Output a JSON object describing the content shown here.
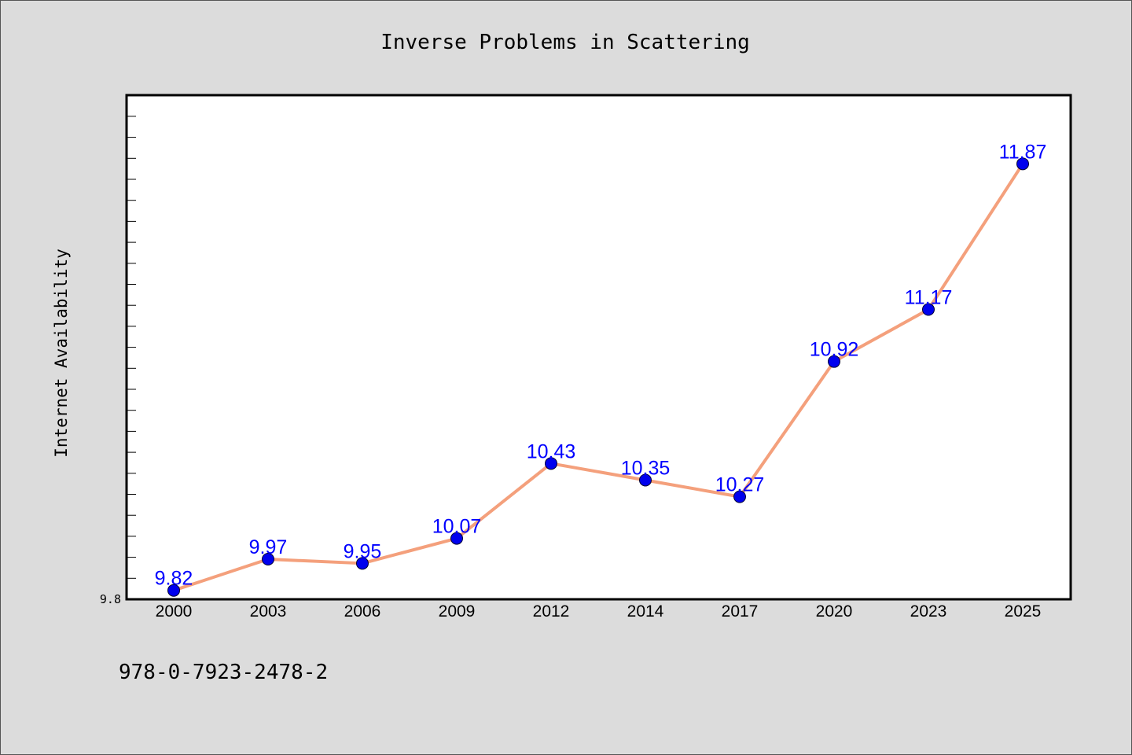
{
  "chart_data": {
    "type": "line",
    "title": "Inverse Problems in Scattering",
    "xlabel": "",
    "ylabel": "Internet Availability",
    "categories": [
      "2000",
      "2003",
      "2006",
      "2009",
      "2012",
      "2014",
      "2017",
      "2020",
      "2023",
      "2025"
    ],
    "series": [
      {
        "values": [
          9.82,
          9.97,
          9.95,
          10.07,
          10.43,
          10.35,
          10.27,
          10.92,
          11.17,
          11.87
        ],
        "labels": [
          "9.82",
          "9.97",
          "9.95",
          "10.07",
          "10.43",
          "10.35",
          "10.27",
          "10.92",
          "11.17",
          "11.87"
        ],
        "line_color": "#f4a07c",
        "marker_color": "#0000ee"
      }
    ],
    "ylim": [
      9.8,
      12.2
    ],
    "ytick_labels": [
      "9.8"
    ],
    "grid": false,
    "legend": "none",
    "label_color": "#0000ff",
    "frame_color": "#000000",
    "plot_background": "#ffffff"
  },
  "footer": {
    "isbn": "978-0-7923-2478-2"
  }
}
